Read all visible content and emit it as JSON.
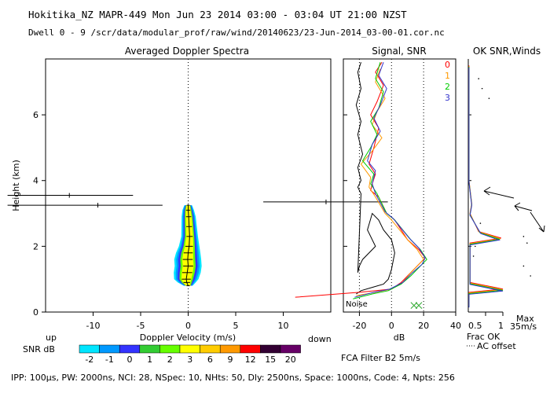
{
  "header": {
    "line1": "Hokitika_NZ  MAPR-449  Mon Jun 23 2014 03:00 - 03:04 UT 21:00 NZST",
    "line2": "Dwell  0 -  9   /scr/data/modular_prof/raw/wind/20140623/23-Jun-2014_03-00-01.cor.nc"
  },
  "footer": {
    "params": "IPP: 100µs,  PW: 2000ns,  NCI:  28,  NSpec: 10,  NHts: 50,  Dly: 2500ns,  Space: 1000ns,  Code: 4,  Npts: 256",
    "filter": "FCA Filter B2  5m/s"
  },
  "chart_data": [
    {
      "type": "heatmap",
      "title": "Averaged Doppler Spectra",
      "xlabel": "Doppler Velocity (m/s)",
      "ylabel": "Height (km)",
      "xlim": [
        -15,
        15
      ],
      "ylim": [
        0,
        7.7
      ],
      "xticks": [
        -10,
        -5,
        0,
        5,
        10
      ],
      "yticks": [
        0,
        2,
        4,
        6
      ],
      "x_left_note": "up",
      "x_right_note": "down",
      "zero_line": "dotted",
      "spectra_profile": [
        {
          "h": 0.8,
          "center": 0.0,
          "halfwidth": 0.35
        },
        {
          "h": 0.9,
          "center": -0.15,
          "halfwidth": 0.7
        },
        {
          "h": 1.0,
          "center": -0.2,
          "halfwidth": 0.95
        },
        {
          "h": 1.2,
          "center": -0.1,
          "halfwidth": 1.05
        },
        {
          "h": 1.4,
          "center": 0.0,
          "halfwidth": 1.05
        },
        {
          "h": 1.6,
          "center": -0.05,
          "halfwidth": 1.05
        },
        {
          "h": 1.8,
          "center": 0.0,
          "halfwidth": 0.95
        },
        {
          "h": 2.0,
          "center": 0.1,
          "halfwidth": 0.8
        },
        {
          "h": 2.3,
          "center": 0.15,
          "halfwidth": 0.65
        },
        {
          "h": 2.6,
          "center": 0.1,
          "halfwidth": 0.6
        },
        {
          "h": 2.9,
          "center": 0.05,
          "halfwidth": 0.55
        },
        {
          "h": 3.1,
          "center": 0.0,
          "halfwidth": 0.45
        },
        {
          "h": 3.25,
          "center": 0.0,
          "halfwidth": 0.3
        }
      ],
      "error_bars": [
        {
          "h": 3.55,
          "x": -12.5,
          "xmin": -19.0,
          "xmax": -5.8
        },
        {
          "h": 3.25,
          "x": -9.5,
          "xmin": -19.0,
          "xmax": -2.7
        },
        {
          "h": 3.35,
          "x": 14.5,
          "xmin": 7.9,
          "xmax": 21.0
        }
      ]
    },
    {
      "type": "line",
      "title": "Signal, SNR",
      "xlabel": "dB",
      "xlim": [
        -30,
        40
      ],
      "ylim": [
        0,
        7.7
      ],
      "xticks": [
        -20,
        0,
        20,
        40
      ],
      "dotted_x": [
        -20,
        0,
        20
      ],
      "annotations": [
        "Noise"
      ],
      "series": [
        {
          "name": "Noise",
          "color": "#000000",
          "points": [
            [
              -22,
              0.55
            ],
            [
              -19,
              0.65
            ],
            [
              -12,
              0.75
            ],
            [
              -5,
              0.85
            ],
            [
              -2,
              1.0
            ],
            [
              0,
              1.3
            ],
            [
              2,
              1.8
            ],
            [
              0,
              2.2
            ],
            [
              -5,
              2.5
            ],
            [
              -8,
              2.8
            ],
            [
              -12,
              3.0
            ],
            [
              -15,
              2.5
            ],
            [
              -10,
              2.0
            ],
            [
              -14,
              1.8
            ],
            [
              -18,
              1.6
            ],
            [
              -20,
              1.4
            ],
            [
              -21,
              1.2
            ],
            [
              -19,
              3.6
            ],
            [
              -21,
              3.8
            ],
            [
              -19,
              4.0
            ],
            [
              -21,
              4.4
            ],
            [
              -18,
              4.8
            ],
            [
              -21,
              5.4
            ],
            [
              -19,
              5.8
            ],
            [
              -22,
              6.3
            ],
            [
              -19,
              6.8
            ],
            [
              -21,
              7.3
            ],
            [
              -19,
              7.6
            ]
          ]
        },
        {
          "name": "0",
          "color": "#ff0000",
          "points": [
            [
              -60,
              0.45
            ],
            [
              -20,
              0.6
            ],
            [
              0,
              0.7
            ],
            [
              6,
              0.9
            ],
            [
              10,
              1.1
            ],
            [
              14,
              1.3
            ],
            [
              18,
              1.5
            ],
            [
              21,
              1.65
            ],
            [
              17,
              1.9
            ],
            [
              10,
              2.2
            ],
            [
              6,
              2.5
            ],
            [
              2,
              2.8
            ],
            [
              -3,
              3.0
            ],
            [
              -8,
              3.5
            ],
            [
              -13,
              3.7
            ],
            [
              -12,
              3.9
            ],
            [
              -10,
              4.2
            ],
            [
              -14,
              4.5
            ],
            [
              -11,
              5.0
            ],
            [
              -8,
              5.6
            ],
            [
              -13,
              6.0
            ],
            [
              -9,
              6.4
            ],
            [
              -5,
              6.9
            ],
            [
              -10,
              7.3
            ],
            [
              -6,
              7.6
            ]
          ]
        },
        {
          "name": "1",
          "color": "#ff9900",
          "points": [
            [
              -22,
              0.5
            ],
            [
              -10,
              0.6
            ],
            [
              0,
              0.7
            ],
            [
              7,
              0.9
            ],
            [
              12,
              1.2
            ],
            [
              16,
              1.4
            ],
            [
              20,
              1.6
            ],
            [
              16,
              1.9
            ],
            [
              10,
              2.2
            ],
            [
              5,
              2.5
            ],
            [
              0,
              2.8
            ],
            [
              -4,
              3.0
            ],
            [
              -10,
              3.5
            ],
            [
              -14,
              3.8
            ],
            [
              -13,
              4.1
            ],
            [
              -19,
              4.5
            ],
            [
              -12,
              4.9
            ],
            [
              -6,
              5.3
            ],
            [
              -12,
              5.7
            ],
            [
              -9,
              6.1
            ],
            [
              -4,
              6.5
            ],
            [
              -10,
              7.0
            ],
            [
              -7,
              7.4
            ]
          ]
        },
        {
          "name": "2",
          "color": "#00cc00",
          "points": [
            [
              -24,
              0.4
            ],
            [
              -12,
              0.55
            ],
            [
              -2,
              0.65
            ],
            [
              6,
              0.85
            ],
            [
              12,
              1.1
            ],
            [
              18,
              1.4
            ],
            [
              22,
              1.6
            ],
            [
              18,
              1.9
            ],
            [
              12,
              2.2
            ],
            [
              7,
              2.5
            ],
            [
              2,
              2.8
            ],
            [
              -3,
              3.0
            ],
            [
              -9,
              3.6
            ],
            [
              -13,
              3.9
            ],
            [
              -11,
              4.2
            ],
            [
              -18,
              4.6
            ],
            [
              -13,
              5.0
            ],
            [
              -9,
              5.4
            ],
            [
              -13,
              5.8
            ],
            [
              -8,
              6.2
            ],
            [
              -5,
              6.7
            ],
            [
              -10,
              7.1
            ],
            [
              -7,
              7.6
            ]
          ]
        },
        {
          "name": "3",
          "color": "#3333cc",
          "points": [
            [
              -23,
              0.45
            ],
            [
              -11,
              0.6
            ],
            [
              -1,
              0.7
            ],
            [
              7,
              0.9
            ],
            [
              13,
              1.2
            ],
            [
              19,
              1.45
            ],
            [
              21,
              1.65
            ],
            [
              17,
              1.95
            ],
            [
              11,
              2.25
            ],
            [
              6,
              2.55
            ],
            [
              1,
              2.85
            ],
            [
              -4,
              3.05
            ],
            [
              -10,
              3.6
            ],
            [
              -12,
              3.9
            ],
            [
              -10,
              4.3
            ],
            [
              -15,
              4.6
            ],
            [
              -12,
              5.1
            ],
            [
              -7,
              5.5
            ],
            [
              -11,
              5.9
            ],
            [
              -7,
              6.3
            ],
            [
              -3,
              6.8
            ],
            [
              -8,
              7.2
            ],
            [
              -5,
              7.6
            ]
          ]
        }
      ]
    },
    {
      "type": "line",
      "title": "OK SNR,Winds",
      "xlabel": "Frac OK",
      "xlim": [
        0,
        1
      ],
      "ylim": [
        0,
        7.7
      ],
      "xticks": [
        0.5,
        1
      ],
      "x_tick_labels": [
        "0.5",
        "1"
      ],
      "note_max": "Max",
      "note_speed": "35m/s",
      "note_offset": "AC offset",
      "legend_title": "OK SNR,Winds",
      "legend": [
        "0",
        "1",
        "2",
        "3"
      ],
      "legend_colors": [
        "#ff0000",
        "#ff9900",
        "#00cc00",
        "#3333cc"
      ]
    }
  ],
  "colorbar": {
    "label": "SNR dB",
    "ticks": [
      "-2",
      "-1",
      "0",
      "1",
      "2",
      "3",
      "6",
      "9",
      "12",
      "15",
      "20"
    ],
    "colors": [
      "#00e5ff",
      "#0099ff",
      "#3333ff",
      "#33cc33",
      "#66ff00",
      "#ffff00",
      "#ffcc00",
      "#ff9900",
      "#ff0000",
      "#330033",
      "#660066"
    ]
  }
}
